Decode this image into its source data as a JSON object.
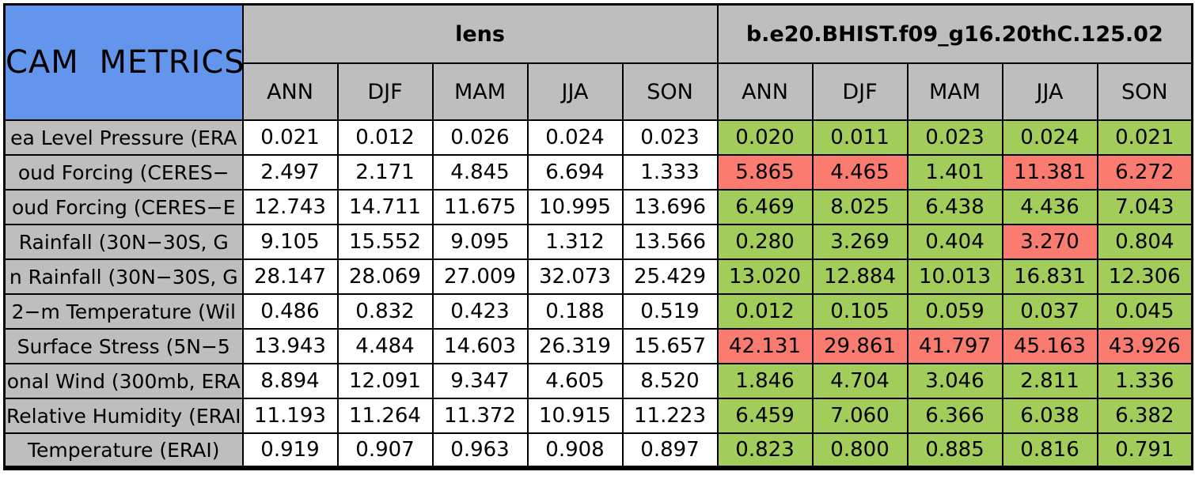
{
  "colors": {
    "title_bg": "#6495ED",
    "header_bg": "#BEBEBE",
    "good_green": "#A2CD5A",
    "bad_red": "#FA7B70",
    "border": "#000000"
  },
  "chart_data": {
    "type": "table",
    "title": "CAM METRICS",
    "column_groups": [
      "lens",
      "b.e20.BHIST.f09_g16.20thC.125.02"
    ],
    "seasons": [
      "ANN",
      "DJF",
      "MAM",
      "JJA",
      "SON"
    ],
    "rows": [
      {
        "label": "ea Level Pressure (ERA",
        "lens": [
          "0.021",
          "0.012",
          "0.026",
          "0.024",
          "0.023"
        ],
        "model": [
          "0.020",
          "0.011",
          "0.023",
          "0.024",
          "0.021"
        ],
        "model_status": [
          "green",
          "green",
          "green",
          "green",
          "green"
        ]
      },
      {
        "label": "oud Forcing (CERES−",
        "lens": [
          "2.497",
          "2.171",
          "4.845",
          "6.694",
          "1.333"
        ],
        "model": [
          "5.865",
          "4.465",
          "1.401",
          "11.381",
          "6.272"
        ],
        "model_status": [
          "red",
          "red",
          "green",
          "red",
          "red"
        ]
      },
      {
        "label": "oud Forcing (CERES−E",
        "lens": [
          "12.743",
          "14.711",
          "11.675",
          "10.995",
          "13.696"
        ],
        "model": [
          "6.469",
          "8.025",
          "6.438",
          "4.436",
          "7.043"
        ],
        "model_status": [
          "green",
          "green",
          "green",
          "green",
          "green"
        ]
      },
      {
        "label": "Rainfall (30N−30S, G",
        "lens": [
          "9.105",
          "15.552",
          "9.095",
          "1.312",
          "13.566"
        ],
        "model": [
          "0.280",
          "3.269",
          "0.404",
          "3.270",
          "0.804"
        ],
        "model_status": [
          "green",
          "green",
          "green",
          "red",
          "green"
        ]
      },
      {
        "label": "n Rainfall (30N−30S, G",
        "lens": [
          "28.147",
          "28.069",
          "27.009",
          "32.073",
          "25.429"
        ],
        "model": [
          "13.020",
          "12.884",
          "10.013",
          "16.831",
          "12.306"
        ],
        "model_status": [
          "green",
          "green",
          "green",
          "green",
          "green"
        ]
      },
      {
        "label": "2−m Temperature (Wil",
        "lens": [
          "0.486",
          "0.832",
          "0.423",
          "0.188",
          "0.519"
        ],
        "model": [
          "0.012",
          "0.105",
          "0.059",
          "0.037",
          "0.045"
        ],
        "model_status": [
          "green",
          "green",
          "green",
          "green",
          "green"
        ]
      },
      {
        "label": "Surface Stress (5N−5",
        "lens": [
          "13.943",
          "4.484",
          "14.603",
          "26.319",
          "15.657"
        ],
        "model": [
          "42.131",
          "29.861",
          "41.797",
          "45.163",
          "43.926"
        ],
        "model_status": [
          "red",
          "red",
          "red",
          "red",
          "red"
        ]
      },
      {
        "label": "onal Wind (300mb, ERA",
        "lens": [
          "8.894",
          "12.091",
          "9.347",
          "4.605",
          "8.520"
        ],
        "model": [
          "1.846",
          "4.704",
          "3.046",
          "2.811",
          "1.336"
        ],
        "model_status": [
          "green",
          "green",
          "green",
          "green",
          "green"
        ]
      },
      {
        "label": "Relative Humidity (ERAI",
        "lens": [
          "11.193",
          "11.264",
          "11.372",
          "10.915",
          "11.223"
        ],
        "model": [
          "6.459",
          "7.060",
          "6.366",
          "6.038",
          "6.382"
        ],
        "model_status": [
          "green",
          "green",
          "green",
          "green",
          "green"
        ]
      },
      {
        "label": "Temperature (ERAI)",
        "lens": [
          "0.919",
          "0.907",
          "0.963",
          "0.908",
          "0.897"
        ],
        "model": [
          "0.823",
          "0.800",
          "0.885",
          "0.816",
          "0.791"
        ],
        "model_status": [
          "green",
          "green",
          "green",
          "green",
          "green"
        ]
      }
    ]
  }
}
